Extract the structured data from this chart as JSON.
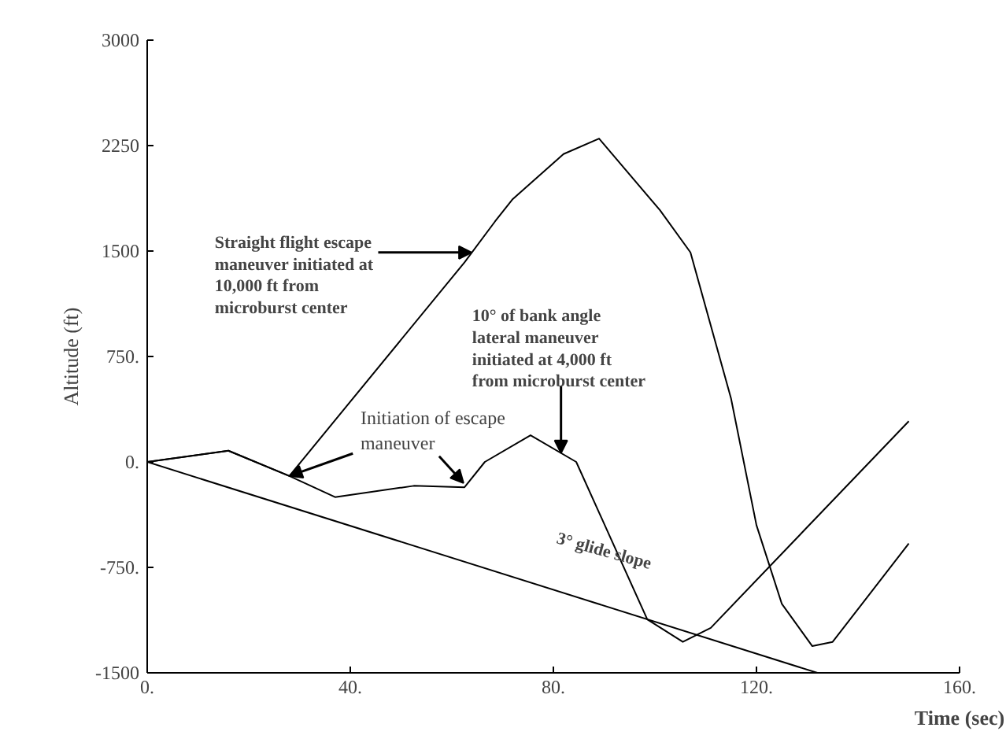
{
  "chart_data": {
    "type": "line",
    "xlabel": "Time (sec)",
    "ylabel": "Altitude (ft)",
    "xlim": [
      0,
      160
    ],
    "ylim": [
      -1500,
      3000
    ],
    "grid": false,
    "marker": "none",
    "line_style": "solid",
    "xticks": [
      {
        "value": 0,
        "label": "0."
      },
      {
        "value": 40,
        "label": "40."
      },
      {
        "value": 80,
        "label": "80."
      },
      {
        "value": 120,
        "label": "120."
      },
      {
        "value": 160,
        "label": "160."
      }
    ],
    "yticks": [
      {
        "value": -1500,
        "label": "-1500"
      },
      {
        "value": -750,
        "label": "-750."
      },
      {
        "value": 0,
        "label": "0."
      },
      {
        "value": 750,
        "label": "750."
      },
      1500,
      2250,
      3000
    ],
    "series": [
      {
        "color": "#000000",
        "x": [
          0,
          16,
          28,
          62.5,
          68.5,
          72,
          82,
          89,
          101,
          107,
          115,
          120,
          125,
          131,
          135,
          150
        ],
        "values": [
          0,
          80,
          -100,
          1420,
          1710,
          1870,
          2190,
          2300,
          1790,
          1490,
          450,
          -450,
          -1010,
          -1310,
          -1280,
          -580
        ]
      },
      {
        "color": "#000000",
        "x": [
          0,
          16,
          28,
          37,
          52.5,
          62.5,
          66.5,
          75.5,
          84.5,
          92.5,
          98.5,
          105.5,
          111,
          150
        ],
        "values": [
          0,
          80,
          -100,
          -250,
          -170,
          -180,
          0,
          190,
          0,
          -640,
          -1120,
          -1280,
          -1180,
          290
        ]
      },
      {
        "color": "#000000",
        "x": [
          0,
          132
        ],
        "values": [
          0,
          -1500
        ]
      }
    ],
    "annotations": [
      {
        "text": "Straight flight escape\nmaneuver initiated at\n10,000 ft from\nmicroburst center",
        "x": 63.9,
        "y": 1490
      },
      {
        "text": "10° of bank angle\nlateral maneuver\ninitiated at 4,000 ft\nfrom microburst center",
        "x": 81.5,
        "y": 63
      },
      {
        "text": "Initiation of escape\nmaneuver",
        "x": 28,
        "y": -100
      },
      "3° glide slope"
    ]
  }
}
